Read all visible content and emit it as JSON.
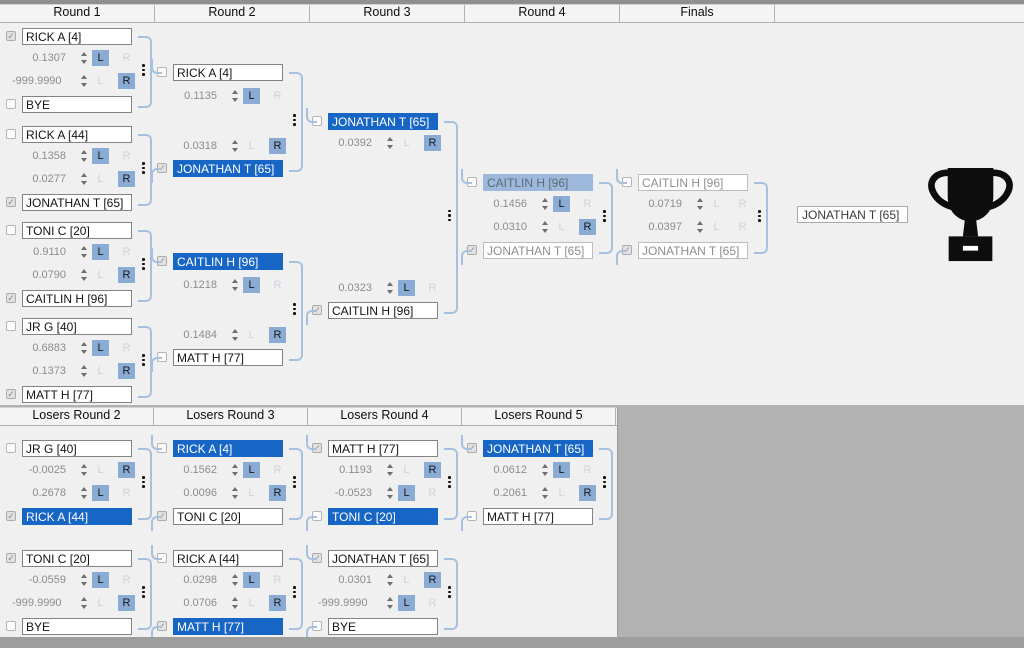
{
  "lr_labels": {
    "left": "L",
    "right": "R"
  },
  "winners": {
    "headers": [
      "Round 1",
      "Round 2",
      "Round 3",
      "Round 4",
      "Finals"
    ],
    "matches": [
      {
        "layout": "compact",
        "rows": [
          {
            "name": "RICK A [4]",
            "checked": true,
            "value": "0.1307",
            "sel": "L",
            "hl": "none"
          },
          {
            "name": "BYE",
            "checked": false,
            "value": "-999.9990",
            "sel": "R",
            "hl": "none"
          }
        ]
      },
      {
        "layout": "compact",
        "rows": [
          {
            "name": "RICK A [44]",
            "checked": false,
            "value": "0.1358",
            "sel": "L",
            "hl": "none"
          },
          {
            "name": "JONATHAN T [65]",
            "checked": true,
            "value": "0.0277",
            "sel": "R",
            "hl": "none"
          }
        ]
      },
      {
        "layout": "compact",
        "rows": [
          {
            "name": "TONI C [20]",
            "checked": false,
            "value": "0.9110",
            "sel": "L",
            "hl": "none"
          },
          {
            "name": "CAITLIN H [96]",
            "checked": true,
            "value": "0.0790",
            "sel": "R",
            "hl": "none"
          }
        ]
      },
      {
        "layout": "compact",
        "rows": [
          {
            "name": "JR G [40]",
            "checked": false,
            "value": "0.6883",
            "sel": "L",
            "hl": "none"
          },
          {
            "name": "MATT H [77]",
            "checked": true,
            "value": "0.1373",
            "sel": "R",
            "hl": "none"
          }
        ]
      },
      {
        "layout": "expanded",
        "rows": [
          {
            "name": "RICK A [4]",
            "checked": false,
            "value": "0.1135",
            "sel": "L",
            "hl": "none"
          },
          {
            "name": "JONATHAN T [65]",
            "checked": true,
            "value": "0.0318",
            "sel": "R",
            "hl": "active"
          }
        ]
      },
      {
        "layout": "expanded",
        "rows": [
          {
            "name": "CAITLIN H [96]",
            "checked": true,
            "value": "0.1218",
            "sel": "L",
            "hl": "active"
          },
          {
            "name": "MATT H [77]",
            "checked": false,
            "value": "0.1484",
            "sel": "R",
            "hl": "none"
          }
        ]
      },
      {
        "layout": "wide",
        "rows": [
          {
            "name": "JONATHAN T [65]",
            "checked": false,
            "value": "0.0392",
            "sel": "R",
            "hl": "active"
          },
          {
            "name": "CAITLIN H [96]",
            "checked": true,
            "value": "0.0323",
            "sel": "L",
            "hl": "none"
          }
        ]
      },
      {
        "layout": "compact",
        "dim": true,
        "rows": [
          {
            "name": "CAITLIN H [96]",
            "checked": false,
            "value": "0.1456",
            "sel": "L",
            "hl": "inactive"
          },
          {
            "name": "JONATHAN T [65]",
            "checked": true,
            "value": "0.0310",
            "sel": "R",
            "hl": "none"
          }
        ]
      },
      {
        "layout": "compact",
        "dim": true,
        "rows": [
          {
            "name": "CAITLIN H [96]",
            "checked": false,
            "value": "0.0719",
            "sel": "none",
            "hl": "none"
          },
          {
            "name": "JONATHAN T [65]",
            "checked": true,
            "value": "0.0397",
            "sel": "none",
            "hl": "none"
          }
        ]
      }
    ]
  },
  "losers": {
    "headers": [
      "Losers Round 2",
      "Losers Round 3",
      "Losers Round 4",
      "Losers Round 5"
    ],
    "matches": [
      {
        "layout": "compact",
        "rows": [
          {
            "name": "JR G [40]",
            "checked": false,
            "value": "-0.0025",
            "sel": "R",
            "hl": "none"
          },
          {
            "name": "RICK A [44]",
            "checked": true,
            "value": "0.2678",
            "sel": "L",
            "hl": "active"
          }
        ]
      },
      {
        "layout": "compact",
        "rows": [
          {
            "name": "TONI C [20]",
            "checked": true,
            "value": "-0.0559",
            "sel": "L",
            "hl": "none"
          },
          {
            "name": "BYE",
            "checked": false,
            "value": "-999.9990",
            "sel": "R",
            "hl": "none"
          }
        ]
      },
      {
        "layout": "compact",
        "rows": [
          {
            "name": "RICK A [4]",
            "checked": false,
            "value": "0.1562",
            "sel": "L",
            "hl": "active"
          },
          {
            "name": "TONI C [20]",
            "checked": true,
            "value": "0.0096",
            "sel": "R",
            "hl": "none"
          }
        ]
      },
      {
        "layout": "compact",
        "rows": [
          {
            "name": "RICK A [44]",
            "checked": false,
            "value": "0.0298",
            "sel": "L",
            "hl": "none"
          },
          {
            "name": "MATT H [77]",
            "checked": true,
            "value": "0.0706",
            "sel": "R",
            "hl": "active"
          }
        ]
      },
      {
        "layout": "compact",
        "rows": [
          {
            "name": "MATT H [77]",
            "checked": true,
            "value": "0.1193",
            "sel": "R",
            "hl": "none"
          },
          {
            "name": "TONI C [20]",
            "checked": false,
            "value": "-0.0523",
            "sel": "L",
            "hl": "active"
          }
        ]
      },
      {
        "layout": "compact",
        "rows": [
          {
            "name": "JONATHAN T [65]",
            "checked": true,
            "value": "0.0301",
            "sel": "R",
            "hl": "none"
          },
          {
            "name": "BYE",
            "checked": false,
            "value": "-999.9990",
            "sel": "L",
            "hl": "none"
          }
        ]
      },
      {
        "layout": "compact",
        "rows": [
          {
            "name": "JONATHAN T [65]",
            "checked": true,
            "value": "0.0612",
            "sel": "L",
            "hl": "active"
          },
          {
            "name": "MATT H [77]",
            "checked": false,
            "value": "0.2061",
            "sel": "R",
            "hl": "none"
          }
        ]
      }
    ]
  },
  "champion": {
    "name": "JONATHAN T [65]"
  },
  "colors": {
    "selection_blue": "#1766c5",
    "selection_blue_inactive": "#9cb8da",
    "button_blue": "#8aabd4",
    "connector_blue": "#a8c0e0",
    "panel_bg": "#f0f0f0",
    "desktop_bg": "#b2b2b2"
  }
}
